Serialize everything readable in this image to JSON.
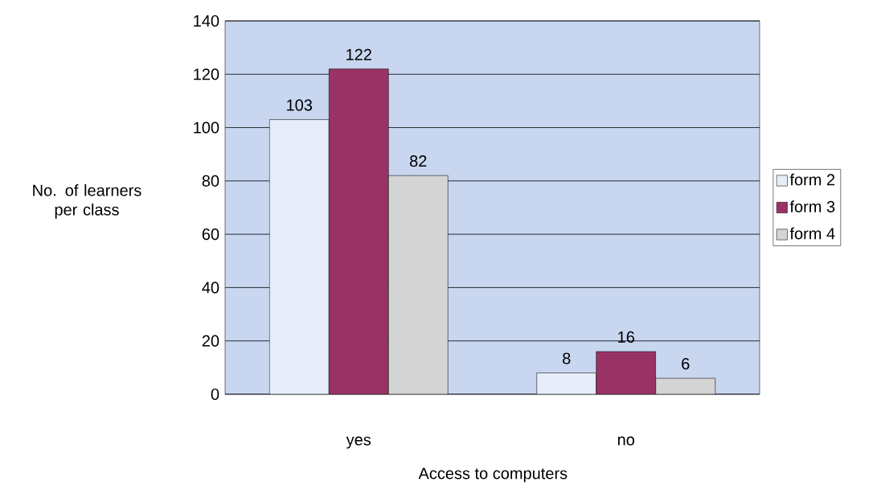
{
  "chart_data": {
    "type": "bar",
    "xlabel": "Access to computers",
    "ylabel": "No. of learners per class",
    "categories": [
      "yes",
      "no"
    ],
    "series": [
      {
        "name": "form 2",
        "color": "#e6ecf8",
        "values": [
          103,
          8
        ]
      },
      {
        "name": "form 3",
        "color": "#993366",
        "values": [
          122,
          16
        ]
      },
      {
        "name": "form 4",
        "color": "#d4d4d4",
        "values": [
          82,
          6
        ]
      }
    ],
    "ylim": [
      0,
      140
    ],
    "yticks": [
      0,
      20,
      40,
      60,
      80,
      100,
      120,
      140
    ],
    "grid": "y",
    "legend": "right",
    "data_labels": true
  }
}
